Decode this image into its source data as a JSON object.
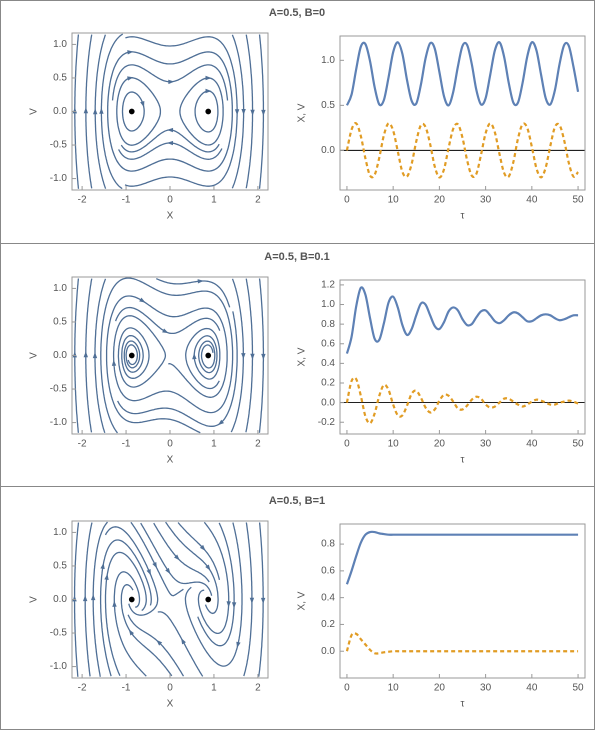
{
  "chart_data": [
    {
      "type": "stream",
      "title": "A=0.5,  B=0",
      "xlabel": "X",
      "ylabel": "V",
      "xlim": [
        -2.23,
        2.23
      ],
      "ylim": [
        -1.17,
        1.17
      ],
      "xticks": [
        -2,
        -1,
        0,
        1,
        2
      ],
      "yticks": [
        {
          "value": -1,
          "label": "-1.0"
        },
        -0.5,
        {
          "value": 0,
          "label": "0.0"
        },
        0.5,
        {
          "value": 1,
          "label": "1.0"
        }
      ],
      "x": [
        -0.87,
        0.87
      ],
      "values": [
        0,
        0
      ],
      "color": "#000000"
    },
    {
      "type": "line",
      "xlabel": "τ",
      "ylabel": "X, V",
      "xlim": [
        -1.5,
        51.5
      ],
      "ylim": [
        -0.44,
        1.27
      ],
      "xticks": [
        0,
        10,
        20,
        30,
        40,
        50
      ],
      "yticks": [
        {
          "value": 0,
          "label": "0.0"
        },
        0.5,
        {
          "value": 1,
          "label": "1.0"
        }
      ],
      "zero_line": true,
      "x": [
        0,
        1,
        2,
        3,
        4,
        5,
        6,
        7,
        8,
        9,
        10,
        11,
        12,
        13,
        14,
        15,
        16,
        17,
        18,
        19,
        20,
        21,
        22,
        23,
        24,
        25,
        26,
        27,
        28,
        29,
        30,
        31,
        32,
        33,
        34,
        35,
        36,
        37,
        38,
        39,
        40,
        41,
        42,
        43,
        44,
        45,
        46,
        47,
        48,
        49,
        50
      ],
      "series": [
        {
          "color": "#5e81b5",
          "dashed": false,
          "values": [
            0.5,
            0.62,
            0.9,
            1.15,
            1.18,
            0.99,
            0.7,
            0.51,
            0.56,
            0.81,
            1.09,
            1.2,
            1.07,
            0.78,
            0.55,
            0.52,
            0.73,
            1.02,
            1.19,
            1.13,
            0.87,
            0.6,
            0.5,
            0.65,
            0.93,
            1.16,
            1.17,
            0.96,
            0.67,
            0.51,
            0.58,
            0.84,
            1.11,
            1.2,
            1.04,
            0.75,
            0.53,
            0.53,
            0.75,
            1.04,
            1.2,
            1.11,
            0.84,
            0.58,
            0.51,
            0.67,
            0.96,
            1.17,
            1.16,
            0.93,
            0.65
          ]
        },
        {
          "color": "#e19c24",
          "dashed": true,
          "values": [
            0,
            0.23,
            0.3,
            0.16,
            -0.09,
            -0.28,
            -0.27,
            -0.08,
            0.17,
            0.3,
            0.22,
            -0.01,
            -0.24,
            -0.29,
            -0.15,
            0.1,
            0.28,
            0.26,
            0.07,
            -0.18,
            -0.3,
            -0.21,
            0.03,
            0.24,
            0.29,
            0.14,
            -0.11,
            -0.28,
            -0.26,
            -0.05,
            0.19,
            0.3,
            0.2,
            -0.04,
            -0.25,
            -0.29,
            -0.13,
            0.13,
            0.29,
            0.25,
            0.04,
            -0.2,
            -0.3,
            -0.19,
            0.05,
            0.26,
            0.28,
            0.11,
            -0.14,
            -0.29,
            -0.24
          ]
        }
      ]
    },
    {
      "type": "stream",
      "title": "A=0.5,  B=0.1",
      "xlabel": "X",
      "ylabel": "V",
      "xlim": [
        -2.23,
        2.23
      ],
      "ylim": [
        -1.17,
        1.17
      ],
      "xticks": [
        -2,
        -1,
        0,
        1,
        2
      ],
      "yticks": [
        {
          "value": -1,
          "label": "-1.0"
        },
        -0.5,
        {
          "value": 0,
          "label": "0.0"
        },
        0.5,
        {
          "value": 1,
          "label": "1.0"
        }
      ],
      "x": [
        -0.87,
        0.87
      ],
      "values": [
        0,
        0
      ],
      "color": "#000000"
    },
    {
      "type": "line",
      "xlabel": "τ",
      "ylabel": "X, V",
      "xlim": [
        -1.5,
        51.5
      ],
      "ylim": [
        -0.32,
        1.25
      ],
      "xticks": [
        0,
        10,
        20,
        30,
        40,
        50
      ],
      "yticks": [
        -0.2,
        {
          "value": 0,
          "label": "0.0"
        },
        0.2,
        0.4,
        0.6,
        0.8,
        {
          "value": 1,
          "label": "1.0"
        },
        1.2
      ],
      "zero_line": true,
      "x": [
        0,
        1,
        2,
        3,
        4,
        5,
        6,
        7,
        8,
        9,
        10,
        11,
        12,
        13,
        14,
        15,
        16,
        17,
        18,
        19,
        20,
        21,
        22,
        23,
        24,
        25,
        26,
        27,
        28,
        29,
        30,
        31,
        32,
        33,
        34,
        35,
        36,
        37,
        38,
        39,
        40,
        41,
        42,
        43,
        44,
        45,
        46,
        47,
        48,
        49,
        50
      ],
      "series": [
        {
          "color": "#5e81b5",
          "dashed": false,
          "values": [
            0.5,
            0.67,
            0.98,
            1.17,
            1.1,
            0.86,
            0.65,
            0.64,
            0.81,
            1.02,
            1.08,
            0.97,
            0.79,
            0.69,
            0.75,
            0.89,
            1.01,
            1,
            0.89,
            0.78,
            0.75,
            0.82,
            0.93,
            0.97,
            0.94,
            0.85,
            0.79,
            0.8,
            0.87,
            0.93,
            0.94,
            0.89,
            0.83,
            0.81,
            0.84,
            0.89,
            0.92,
            0.91,
            0.87,
            0.83,
            0.83,
            0.86,
            0.89,
            0.9,
            0.89,
            0.86,
            0.84,
            0.85,
            0.87,
            0.89,
            0.89
          ]
        },
        {
          "color": "#e19c24",
          "dashed": true,
          "values": [
            0,
            0.22,
            0.24,
            0.07,
            -0.14,
            -0.21,
            -0.11,
            0.07,
            0.18,
            0.13,
            -0.02,
            -0.13,
            -0.13,
            -0.03,
            0.09,
            0.12,
            0.05,
            -0.05,
            -0.1,
            -0.07,
            0.02,
            0.08,
            0.07,
            0.01,
            -0.06,
            -0.07,
            -0.03,
            0.03,
            0.06,
            0.04,
            -0.02,
            -0.05,
            -0.04,
            0,
            0.04,
            0.04,
            0.01,
            -0.02,
            -0.04,
            -0.02,
            0.01,
            0.03,
            0.02,
            0,
            -0.02,
            -0.02,
            0,
            0.01,
            0.02,
            0.01,
            -0.01
          ]
        }
      ]
    },
    {
      "type": "stream",
      "title": "A=0.5,  B=1",
      "xlabel": "X",
      "ylabel": "V",
      "xlim": [
        -2.23,
        2.23
      ],
      "ylim": [
        -1.17,
        1.17
      ],
      "xticks": [
        -2,
        -1,
        0,
        1,
        2
      ],
      "yticks": [
        {
          "value": -1,
          "label": "-1.0"
        },
        -0.5,
        {
          "value": 0,
          "label": "0.0"
        },
        0.5,
        {
          "value": 1,
          "label": "1.0"
        }
      ],
      "x": [
        -0.87,
        0.87
      ],
      "values": [
        0,
        0
      ],
      "color": "#000000"
    },
    {
      "type": "line",
      "xlabel": "τ",
      "ylabel": "X, V",
      "xlim": [
        -1.5,
        51.5
      ],
      "ylim": [
        -0.2,
        0.95
      ],
      "xticks": [
        0,
        10,
        20,
        30,
        40,
        50
      ],
      "yticks": [
        {
          "value": 0,
          "label": "0.0"
        },
        0.2,
        0.4,
        0.6,
        0.8
      ],
      "zero_line": false,
      "x": [
        0,
        1,
        2,
        3,
        4,
        5,
        6,
        7,
        8,
        9,
        10,
        11,
        12,
        13,
        14,
        15,
        16,
        17,
        18,
        19,
        20,
        21,
        22,
        23,
        24,
        25,
        26,
        27,
        28,
        29,
        30,
        31,
        32,
        33,
        34,
        35,
        36,
        37,
        38,
        39,
        40,
        41,
        42,
        43,
        44,
        45,
        46,
        47,
        48,
        49,
        50
      ],
      "series": [
        {
          "color": "#5e81b5",
          "dashed": false,
          "values": [
            0.5,
            0.6,
            0.71,
            0.81,
            0.87,
            0.89,
            0.89,
            0.88,
            0.875,
            0.87,
            0.87,
            0.87,
            0.87,
            0.87,
            0.87,
            0.87,
            0.87,
            0.87,
            0.87,
            0.87,
            0.87,
            0.87,
            0.87,
            0.87,
            0.87,
            0.87,
            0.87,
            0.87,
            0.87,
            0.87,
            0.87,
            0.87,
            0.87,
            0.87,
            0.87,
            0.87,
            0.87,
            0.87,
            0.87,
            0.87,
            0.87,
            0.87,
            0.87,
            0.87,
            0.87,
            0.87,
            0.87,
            0.87,
            0.87,
            0.87,
            0.87
          ]
        },
        {
          "color": "#e19c24",
          "dashed": true,
          "values": [
            0,
            0.12,
            0.13,
            0.09,
            0.05,
            0.01,
            -0.015,
            -0.015,
            -0.008,
            -0.004,
            0,
            0,
            0,
            0,
            0,
            0,
            0,
            0,
            0,
            0,
            0,
            0,
            0,
            0,
            0,
            0,
            0,
            0,
            0,
            0,
            0,
            0,
            0,
            0,
            0,
            0,
            0,
            0,
            0,
            0,
            0,
            0,
            0,
            0,
            0,
            0,
            0,
            0,
            0,
            0,
            0
          ]
        }
      ]
    }
  ]
}
